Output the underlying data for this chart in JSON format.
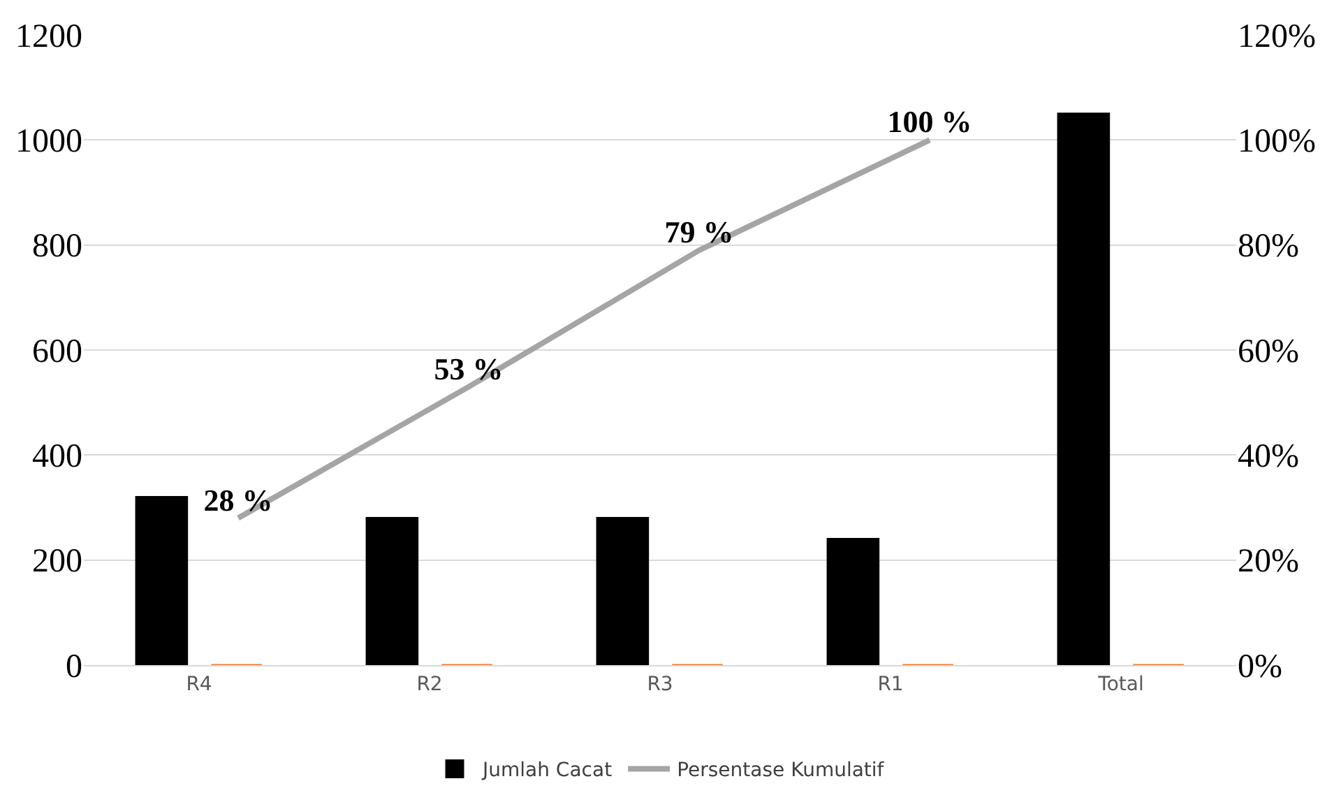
{
  "chart_data": {
    "type": "bar",
    "categories": [
      "R4",
      "R2",
      "R3",
      "R1",
      "Total"
    ],
    "series": [
      {
        "name": "Jumlah Cacat",
        "color": "#000000",
        "values": [
          320,
          280,
          280,
          240,
          1050
        ]
      },
      {
        "color": "#ed7d31",
        "values": [
          0,
          0,
          0,
          0,
          0
        ]
      },
      {
        "name": "Persentase Kumulatif",
        "type": "line",
        "axis": "y2",
        "color": "#a5a5a5",
        "values": [
          28,
          53,
          79,
          100,
          null
        ],
        "value_labels": [
          "28 %",
          "53 %",
          "79 %",
          "100 %",
          null
        ]
      }
    ],
    "ylim": [
      0,
      1200
    ],
    "yticks": [
      0,
      200,
      400,
      600,
      800,
      1000,
      1200
    ],
    "y2lim": [
      0,
      120
    ],
    "y2ticks": [
      {
        "value": 0,
        "label": "0%"
      },
      {
        "value": 20,
        "label": "20%"
      },
      {
        "value": 40,
        "label": "40%"
      },
      {
        "value": 60,
        "label": "60%"
      },
      {
        "value": 80,
        "label": "80%"
      },
      {
        "value": 100,
        "label": "100%"
      },
      {
        "value": 120,
        "label": "120%"
      }
    ],
    "grid": "y",
    "legend": "bottom",
    "marker": "none",
    "line_style": "solid"
  }
}
